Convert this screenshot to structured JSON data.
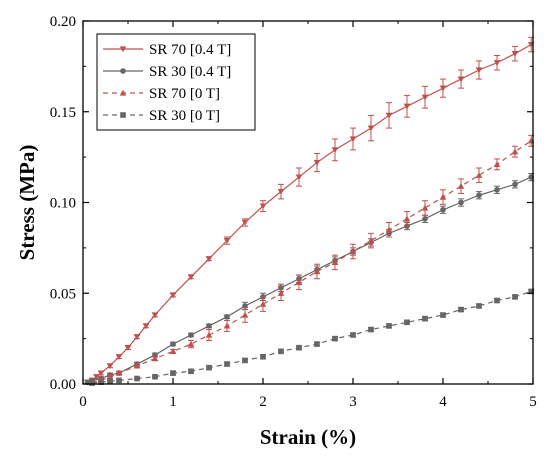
{
  "chart_data": {
    "type": "line",
    "xlabel": "Strain (%)",
    "ylabel": "Stress (MPa)",
    "xlim": [
      0,
      5
    ],
    "ylim": [
      0,
      0.2
    ],
    "xticks": [
      "0",
      "1",
      "2",
      "3",
      "4",
      "5"
    ],
    "yticks": [
      "0.00",
      "0.05",
      "0.10",
      "0.15",
      "0.20"
    ],
    "grid": false,
    "legend_position": "top-left",
    "series": [
      {
        "name": "SR 70 [0.4 T]",
        "color": "#c0504d",
        "line_style": "solid",
        "marker": "triangle-down",
        "x": [
          0.05,
          0.1,
          0.15,
          0.2,
          0.3,
          0.4,
          0.5,
          0.6,
          0.7,
          0.8,
          1.0,
          1.2,
          1.4,
          1.6,
          1.8,
          2.0,
          2.2,
          2.4,
          2.6,
          2.8,
          3.0,
          3.2,
          3.4,
          3.6,
          3.8,
          4.0,
          4.2,
          4.4,
          4.6,
          4.8,
          4.98
        ],
        "y": [
          0.001,
          0.002,
          0.004,
          0.006,
          0.01,
          0.015,
          0.02,
          0.026,
          0.032,
          0.038,
          0.049,
          0.059,
          0.069,
          0.079,
          0.089,
          0.098,
          0.106,
          0.114,
          0.122,
          0.129,
          0.135,
          0.141,
          0.148,
          0.153,
          0.158,
          0.163,
          0.168,
          0.173,
          0.177,
          0.182,
          0.187
        ],
        "yerr": [
          0.001,
          0.001,
          0.001,
          0.001,
          0.001,
          0.001,
          0.001,
          0.001,
          0.001,
          0.001,
          0.001,
          0.001,
          0.001,
          0.002,
          0.002,
          0.003,
          0.004,
          0.005,
          0.005,
          0.006,
          0.006,
          0.007,
          0.007,
          0.006,
          0.006,
          0.005,
          0.005,
          0.005,
          0.004,
          0.004,
          0.004
        ]
      },
      {
        "name": "SR 30 [0.4 T]",
        "color": "#666666",
        "line_style": "solid",
        "marker": "circle",
        "x": [
          0.05,
          0.1,
          0.2,
          0.3,
          0.4,
          0.6,
          0.8,
          1.0,
          1.2,
          1.4,
          1.6,
          1.8,
          2.0,
          2.2,
          2.4,
          2.6,
          2.8,
          3.0,
          3.2,
          3.4,
          3.6,
          3.8,
          4.0,
          4.2,
          4.4,
          4.6,
          4.8,
          4.98
        ],
        "y": [
          0.001,
          0.002,
          0.003,
          0.005,
          0.006,
          0.011,
          0.016,
          0.022,
          0.027,
          0.032,
          0.037,
          0.043,
          0.048,
          0.053,
          0.058,
          0.063,
          0.068,
          0.073,
          0.078,
          0.083,
          0.087,
          0.091,
          0.096,
          0.1,
          0.104,
          0.107,
          0.11,
          0.114
        ],
        "yerr": [
          0.001,
          0.001,
          0.001,
          0.001,
          0.001,
          0.001,
          0.001,
          0.001,
          0.001,
          0.001,
          0.001,
          0.002,
          0.002,
          0.002,
          0.002,
          0.002,
          0.002,
          0.002,
          0.002,
          0.002,
          0.002,
          0.002,
          0.002,
          0.002,
          0.002,
          0.002,
          0.002,
          0.002
        ]
      },
      {
        "name": "SR 70 [0 T]",
        "color": "#c0504d",
        "line_style": "dashed",
        "marker": "triangle-up",
        "x": [
          0.1,
          0.2,
          0.3,
          0.4,
          0.6,
          0.8,
          1.0,
          1.2,
          1.4,
          1.6,
          1.8,
          2.0,
          2.2,
          2.4,
          2.6,
          2.8,
          3.0,
          3.2,
          3.4,
          3.6,
          3.8,
          4.0,
          4.2,
          4.4,
          4.6,
          4.8,
          4.98
        ],
        "y": [
          0.001,
          0.002,
          0.004,
          0.006,
          0.01,
          0.014,
          0.018,
          0.022,
          0.027,
          0.032,
          0.038,
          0.044,
          0.05,
          0.056,
          0.062,
          0.067,
          0.073,
          0.079,
          0.085,
          0.091,
          0.097,
          0.103,
          0.109,
          0.115,
          0.121,
          0.128,
          0.134
        ],
        "yerr": [
          0.001,
          0.001,
          0.001,
          0.001,
          0.001,
          0.001,
          0.001,
          0.002,
          0.003,
          0.003,
          0.004,
          0.004,
          0.004,
          0.004,
          0.004,
          0.004,
          0.004,
          0.004,
          0.004,
          0.004,
          0.004,
          0.004,
          0.004,
          0.004,
          0.003,
          0.003,
          0.003
        ]
      },
      {
        "name": "SR 30 [0 T]",
        "color": "#666666",
        "line_style": "dashed",
        "marker": "square",
        "x": [
          0.1,
          0.2,
          0.3,
          0.4,
          0.6,
          0.8,
          1.0,
          1.2,
          1.4,
          1.6,
          1.8,
          2.0,
          2.2,
          2.4,
          2.6,
          2.8,
          3.0,
          3.2,
          3.4,
          3.6,
          3.8,
          4.0,
          4.2,
          4.4,
          4.6,
          4.8,
          4.98
        ],
        "y": [
          0.0005,
          0.001,
          0.0015,
          0.002,
          0.003,
          0.004,
          0.006,
          0.007,
          0.009,
          0.011,
          0.013,
          0.015,
          0.018,
          0.02,
          0.022,
          0.025,
          0.027,
          0.03,
          0.032,
          0.034,
          0.036,
          0.038,
          0.041,
          0.043,
          0.046,
          0.048,
          0.051
        ],
        "yerr": [
          0.0005,
          0.0005,
          0.0005,
          0.0005,
          0.0005,
          0.0005,
          0.001,
          0.001,
          0.001,
          0.001,
          0.001,
          0.001,
          0.001,
          0.001,
          0.001,
          0.001,
          0.001,
          0.001,
          0.001,
          0.001,
          0.001,
          0.001,
          0.001,
          0.001,
          0.001,
          0.001,
          0.001
        ]
      }
    ]
  }
}
